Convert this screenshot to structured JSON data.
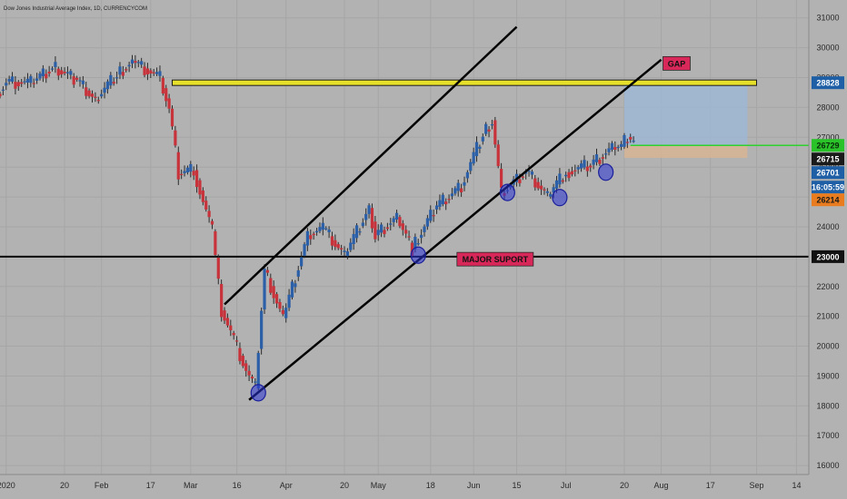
{
  "header": {
    "title": "Dow Jones Industrial Average Index, 1D, CURRENCYCOM"
  },
  "colors": {
    "background": "#b2b2b2",
    "up": "#2b5fa8",
    "down": "#c8323a",
    "trendline": "#000000",
    "resistance": "#e6e02a",
    "target_line": "#2fd12f",
    "highlight_circle": "#2a33d6",
    "note_fill": "#d8285a"
  },
  "chart_data": {
    "type": "candlestick",
    "title": "Dow Jones Industrial Average Index, 1D, CURRENCYCOM",
    "xlabel": "",
    "ylabel": "",
    "ylim": [
      15700,
      31600
    ],
    "y_ticks": [
      16000,
      17000,
      18000,
      19000,
      20000,
      21000,
      22000,
      23000,
      24000,
      25000,
      26000,
      27000,
      28000,
      29000,
      30000,
      31000
    ],
    "x_range": [
      "2019-12-30",
      "2020-09-18"
    ],
    "x_ticks": [
      {
        "date": "2020-01-01",
        "label": "2020"
      },
      {
        "date": "2020-01-20",
        "label": "20"
      },
      {
        "date": "2020-02-01",
        "label": "Feb"
      },
      {
        "date": "2020-02-17",
        "label": "17"
      },
      {
        "date": "2020-03-01",
        "label": "Mar"
      },
      {
        "date": "2020-03-16",
        "label": "16"
      },
      {
        "date": "2020-04-01",
        "label": "Apr"
      },
      {
        "date": "2020-04-20",
        "label": "20"
      },
      {
        "date": "2020-05-01",
        "label": "May"
      },
      {
        "date": "2020-05-18",
        "label": "18"
      },
      {
        "date": "2020-06-01",
        "label": "Jun"
      },
      {
        "date": "2020-06-15",
        "label": "15"
      },
      {
        "date": "2020-07-01",
        "label": "Jul"
      },
      {
        "date": "2020-07-20",
        "label": "20"
      },
      {
        "date": "2020-08-01",
        "label": "Aug"
      },
      {
        "date": "2020-08-17",
        "label": "17"
      },
      {
        "date": "2020-09-01",
        "label": "Sep"
      },
      {
        "date": "2020-09-14",
        "label": "14"
      }
    ],
    "grid": true,
    "legend": "none",
    "closes": [
      {
        "date": "2019-12-30",
        "close": 28460
      },
      {
        "date": "2020-01-02",
        "close": 28870
      },
      {
        "date": "2020-01-10",
        "close": 28820
      },
      {
        "date": "2020-01-17",
        "close": 29350
      },
      {
        "date": "2020-01-24",
        "close": 28990
      },
      {
        "date": "2020-01-31",
        "close": 28250
      },
      {
        "date": "2020-02-07",
        "close": 29100
      },
      {
        "date": "2020-02-12",
        "close": 29560
      },
      {
        "date": "2020-02-21",
        "close": 28990
      },
      {
        "date": "2020-02-24",
        "close": 27960
      },
      {
        "date": "2020-02-27",
        "close": 25770
      },
      {
        "date": "2020-03-03",
        "close": 25900
      },
      {
        "date": "2020-03-09",
        "close": 23850
      },
      {
        "date": "2020-03-12",
        "close": 21200
      },
      {
        "date": "2020-03-16",
        "close": 20190
      },
      {
        "date": "2020-03-20",
        "close": 19170
      },
      {
        "date": "2020-03-23",
        "close": 18590
      },
      {
        "date": "2020-03-26",
        "close": 22550
      },
      {
        "date": "2020-04-01",
        "close": 20940
      },
      {
        "date": "2020-04-09",
        "close": 23720
      },
      {
        "date": "2020-04-14",
        "close": 23950
      },
      {
        "date": "2020-04-21",
        "close": 23020
      },
      {
        "date": "2020-04-29",
        "close": 24630
      },
      {
        "date": "2020-05-01",
        "close": 23720
      },
      {
        "date": "2020-05-08",
        "close": 24330
      },
      {
        "date": "2020-05-13",
        "close": 23250
      },
      {
        "date": "2020-05-20",
        "close": 24580
      },
      {
        "date": "2020-05-29",
        "close": 25380
      },
      {
        "date": "2020-06-05",
        "close": 27110
      },
      {
        "date": "2020-06-08",
        "close": 27570
      },
      {
        "date": "2020-06-11",
        "close": 25130
      },
      {
        "date": "2020-06-19",
        "close": 25870
      },
      {
        "date": "2020-06-26",
        "close": 25010
      },
      {
        "date": "2020-07-02",
        "close": 25830
      },
      {
        "date": "2020-07-10",
        "close": 26080
      },
      {
        "date": "2020-07-17",
        "close": 26670
      },
      {
        "date": "2020-07-20",
        "close": 26680
      },
      {
        "date": "2020-07-22",
        "close": 27010
      },
      {
        "date": "2020-07-24",
        "close": 26750
      }
    ],
    "horizontal_levels": [
      {
        "price": 28828,
        "label": "28828",
        "kind": "resistance-gap"
      },
      {
        "price": 26729,
        "label": "26729",
        "kind": "target"
      },
      {
        "price": 23000,
        "label": "23000",
        "kind": "major-support"
      }
    ],
    "price_badges": [
      {
        "price": 26715,
        "label": "26715"
      },
      {
        "price": 26701,
        "label": "26701"
      },
      {
        "price": 26000,
        "label": "16:05:59"
      },
      {
        "price": 26214,
        "label": "26214"
      }
    ],
    "trendlines": [
      {
        "from": {
          "date": "2020-03-12",
          "price": 21400
        },
        "to": {
          "date": "2020-06-15",
          "price": 30700
        }
      },
      {
        "from": {
          "date": "2020-03-20",
          "price": 18200
        },
        "to": {
          "date": "2020-08-01",
          "price": 29600
        }
      }
    ],
    "zones": [
      {
        "from_date": "2020-07-20",
        "to_date": "2020-08-29",
        "top": 28828,
        "bottom": 26729,
        "kind": "target"
      },
      {
        "from_date": "2020-07-20",
        "to_date": "2020-08-29",
        "top": 26729,
        "bottom": 26310,
        "kind": "stop"
      }
    ],
    "marked_lows": [
      {
        "date": "2020-03-23",
        "price": 18440
      },
      {
        "date": "2020-05-14",
        "price": 23050
      },
      {
        "date": "2020-06-12",
        "price": 25150
      },
      {
        "date": "2020-06-29",
        "price": 24980
      },
      {
        "date": "2020-07-14",
        "price": 25830
      }
    ],
    "annotations": [
      {
        "text": "GAP",
        "date": "2020-08-06",
        "price": 29460
      },
      {
        "text": "MAJOR SUPORT",
        "date": "2020-06-08",
        "price": 22900
      }
    ]
  }
}
